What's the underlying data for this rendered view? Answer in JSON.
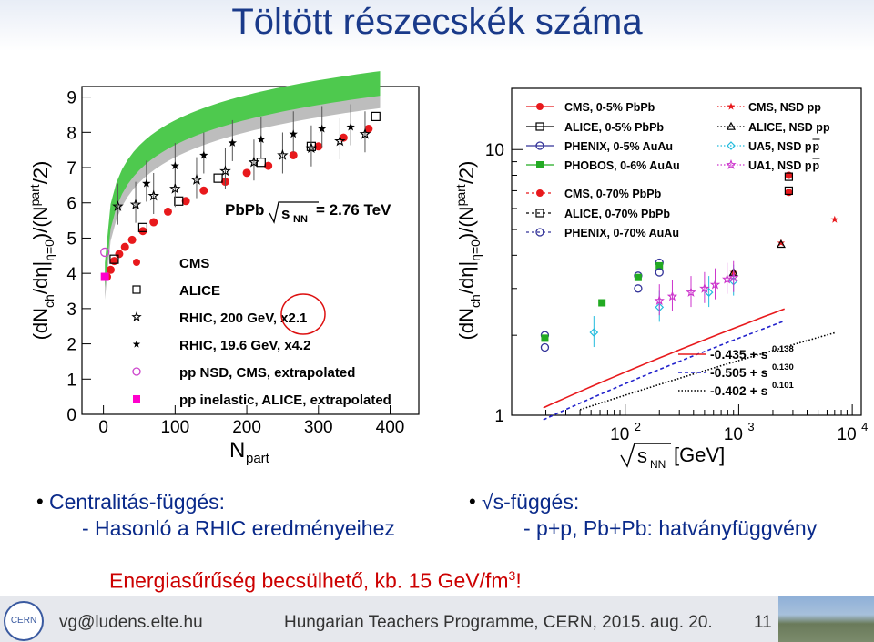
{
  "slide": {
    "title": "Töltött részecskék száma",
    "page_number": "11"
  },
  "bullets": {
    "left_head": "Centralitás-függés:",
    "left_sub": "- Hasonló a RHIC eredményeihez",
    "right_head": "√s-függés:",
    "right_sub": "- p+p, Pb+Pb: hatványfüggvény",
    "energy_text": "Energiasűrűség becsülhető, kb. 15 GeV/fm",
    "energy_sup": "3",
    "energy_end": "!"
  },
  "footer": {
    "email": "vg@ludens.elte.hu",
    "programme": "Hungarian Teachers Programme, CERN, 2015. aug. 20.",
    "logo_text": "CERN"
  },
  "chart_data": [
    {
      "type": "scatter",
      "panel": "left",
      "ylabel_main": "(dN",
      "ylabel_sub1": "ch",
      "ylabel_mid": "/dη|",
      "ylabel_sub2": "η=0",
      "ylabel_end": ")/(N",
      "ylabel_sub3": "part",
      "ylabel_tail": "/2)",
      "xlabel": "N",
      "xlabel_sub": "part",
      "annotation_left": "PbPb",
      "annotation_s": "s",
      "annotation_sub": "NN",
      "annotation_right": "= 2.76 TeV",
      "xlim": [
        -30,
        440
      ],
      "ylim": [
        0,
        9.3
      ],
      "xticks": [
        0,
        100,
        200,
        300,
        400
      ],
      "yticks": [
        0,
        1,
        2,
        3,
        4,
        5,
        6,
        7,
        8,
        9
      ],
      "legend": [
        "CMS",
        "ALICE",
        "RHIC, 200 GeV, x2.1",
        "RHIC, 19.6 GeV, x4.2",
        "pp NSD, CMS, extrapolated",
        "pp inelastic, ALICE, extrapolated"
      ],
      "series": [
        {
          "name": "CMS",
          "color": "#e8191c",
          "marker": "circle",
          "x": [
            5,
            10,
            15,
            22,
            30,
            40,
            55,
            70,
            90,
            115,
            140,
            170,
            200,
            230,
            265,
            300,
            335,
            370
          ],
          "y": [
            3.9,
            4.1,
            4.35,
            4.55,
            4.75,
            4.95,
            5.2,
            5.45,
            5.75,
            6.05,
            6.35,
            6.6,
            6.85,
            7.05,
            7.35,
            7.6,
            7.85,
            8.1
          ]
        },
        {
          "name": "ALICE",
          "color": "#000000",
          "marker": "square",
          "x": [
            15,
            55,
            105,
            160,
            220,
            290,
            380
          ],
          "y": [
            4.4,
            5.3,
            6.05,
            6.7,
            7.15,
            7.6,
            8.45
          ]
        },
        {
          "name": "RHIC, 200 GeV, x2.1",
          "color": "#000000",
          "marker": "open-star",
          "x": [
            20,
            45,
            70,
            100,
            130,
            170,
            210,
            250,
            290,
            330,
            365
          ],
          "y": [
            5.9,
            5.95,
            6.2,
            6.4,
            6.65,
            6.9,
            7.15,
            7.35,
            7.55,
            7.75,
            7.95
          ]
        },
        {
          "name": "RHIC, 19.6 GeV, x4.2",
          "color": "#000000",
          "marker": "filled-star",
          "x": [
            60,
            100,
            140,
            180,
            220,
            265,
            305,
            345
          ],
          "y": [
            6.55,
            7.05,
            7.35,
            7.7,
            7.8,
            7.95,
            8.1,
            8.15
          ]
        },
        {
          "name": "pp NSD, CMS, extrapolated",
          "color": "#cc44cc",
          "marker": "open-circle",
          "x": [
            2
          ],
          "y": [
            4.6
          ]
        },
        {
          "name": "pp inelastic, ALICE, extrapolated",
          "color": "#ff00cc",
          "marker": "filled-square",
          "x": [
            2
          ],
          "y": [
            3.9
          ]
        }
      ]
    },
    {
      "type": "scatter",
      "panel": "right",
      "scale": "log-log",
      "ylabel_main": "(dN",
      "ylabel_sub1": "ch",
      "ylabel_mid": "/dη|",
      "ylabel_sub2": "η=0",
      "ylabel_end": ")/(N",
      "ylabel_sub3": "part",
      "ylabel_tail": "/2)",
      "xlabel_s": "s",
      "xlabel_sub": "NN",
      "xlabel_unit": "[GeV]",
      "xlim": [
        10,
        12000
      ],
      "ylim": [
        1,
        17
      ],
      "xtick_labels": [
        {
          "v": 100,
          "base": "10",
          "exp": "2"
        },
        {
          "v": 1000,
          "base": "10",
          "exp": "3"
        },
        {
          "v": 10000,
          "base": "10",
          "exp": "4"
        }
      ],
      "ytick_labels": [
        {
          "v": 1,
          "label": "1"
        },
        {
          "v": 10,
          "label": "10"
        }
      ],
      "legend_left": [
        "CMS, 0-5% PbPb",
        "ALICE, 0-5% PbPb",
        "PHENIX, 0-5% AuAu",
        "PHOBOS, 0-6% AuAu",
        "CMS, 0-70% PbPb",
        "ALICE, 0-70% PbPb",
        "PHENIX, 0-70% AuAu"
      ],
      "legend_right": [
        "CMS, NSD pp",
        "ALICE, NSD pp",
        "UA5, NSD p",
        "UA1, NSD p"
      ],
      "legend_right_over": [
        "",
        "",
        "p",
        "p"
      ],
      "fits": [
        {
          "label": "-0.435 + s",
          "exp": "0.138",
          "a": -0.435,
          "b": 0.138,
          "color": "#e8191c",
          "dash": ""
        },
        {
          "label": "-0.505 + s",
          "exp": "0.130",
          "a": -0.505,
          "b": 0.13,
          "color": "#2222cc",
          "dash": "4,3"
        },
        {
          "label": "-0.402 + s",
          "exp": "0.101",
          "a": -0.402,
          "b": 0.101,
          "color": "#000000",
          "dash": "1.5,2"
        }
      ],
      "series": [
        {
          "name": "CMS, 0-5% PbPb",
          "color": "#e8191c",
          "marker": "circle",
          "x": [
            2760
          ],
          "y": [
            8.0
          ]
        },
        {
          "name": "ALICE, 0-5% PbPb",
          "color": "#000000",
          "marker": "square",
          "x": [
            2760
          ],
          "y": [
            7.9
          ]
        },
        {
          "name": "PHENIX, 0-5% AuAu",
          "color": "#333399",
          "marker": "open-circle",
          "x": [
            19.6,
            130,
            200
          ],
          "y": [
            2.0,
            3.35,
            3.75
          ]
        },
        {
          "name": "PHOBOS, 0-6% AuAu",
          "color": "#22aa22",
          "marker": "filled-square",
          "x": [
            19.6,
            62.4,
            130,
            200
          ],
          "y": [
            1.95,
            2.65,
            3.3,
            3.65
          ]
        },
        {
          "name": "CMS, 0-70% PbPb",
          "color": "#e8191c",
          "marker": "circle",
          "x": [
            2760
          ],
          "y": [
            6.9
          ]
        },
        {
          "name": "ALICE, 0-70% PbPb",
          "color": "#000000",
          "marker": "square",
          "x": [
            2760
          ],
          "y": [
            7.0
          ]
        },
        {
          "name": "PHENIX, 0-70% AuAu",
          "color": "#333399",
          "marker": "open-circle",
          "x": [
            19.6,
            130,
            200
          ],
          "y": [
            1.8,
            3.0,
            3.45
          ]
        },
        {
          "name": "CMS, NSD pp",
          "color": "#e8191c",
          "marker": "filled-star",
          "x": [
            900,
            2360,
            7000
          ],
          "y": [
            3.45,
            4.45,
            5.45
          ]
        },
        {
          "name": "ALICE, NSD pp",
          "color": "#000000",
          "marker": "open-triangle",
          "x": [
            900,
            2360
          ],
          "y": [
            3.45,
            4.4
          ]
        },
        {
          "name": "UA5, NSD p",
          "color": "#22bbdd",
          "marker": "open-diamond",
          "x": [
            53,
            200,
            546,
            900
          ],
          "y": [
            2.05,
            2.55,
            2.9,
            3.2
          ]
        },
        {
          "name": "UA1, NSD p",
          "color": "#cc33cc",
          "marker": "open-star",
          "x": [
            200,
            260,
            380,
            500,
            620,
            790,
            900
          ],
          "y": [
            2.7,
            2.8,
            2.9,
            3.0,
            3.1,
            3.25,
            3.3
          ]
        }
      ]
    }
  ]
}
